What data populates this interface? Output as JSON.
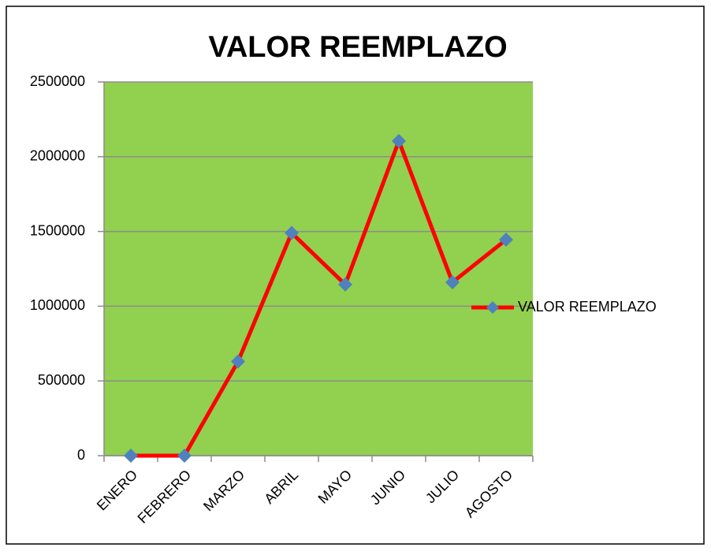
{
  "chart_data": {
    "type": "line",
    "title": "VALOR REEMPLAZO",
    "categories": [
      "ENERO",
      "FEBRERO",
      "MARZO",
      "ABRIL",
      "MAYO",
      "JUNIO",
      "JULIO",
      "AGOSTO"
    ],
    "series": [
      {
        "name": "VALOR REEMPLAZO",
        "color": "#ff0000",
        "marker_color": "#4f81bd",
        "values": [
          0,
          0,
          630000,
          1490000,
          1145000,
          2105000,
          1160000,
          1445000
        ]
      }
    ],
    "ylim": [
      0,
      2500000
    ],
    "yticks": [
      0,
      500000,
      1000000,
      1500000,
      2000000,
      2500000
    ],
    "grid": true,
    "plot_background": "#92d050",
    "legend": "right"
  }
}
